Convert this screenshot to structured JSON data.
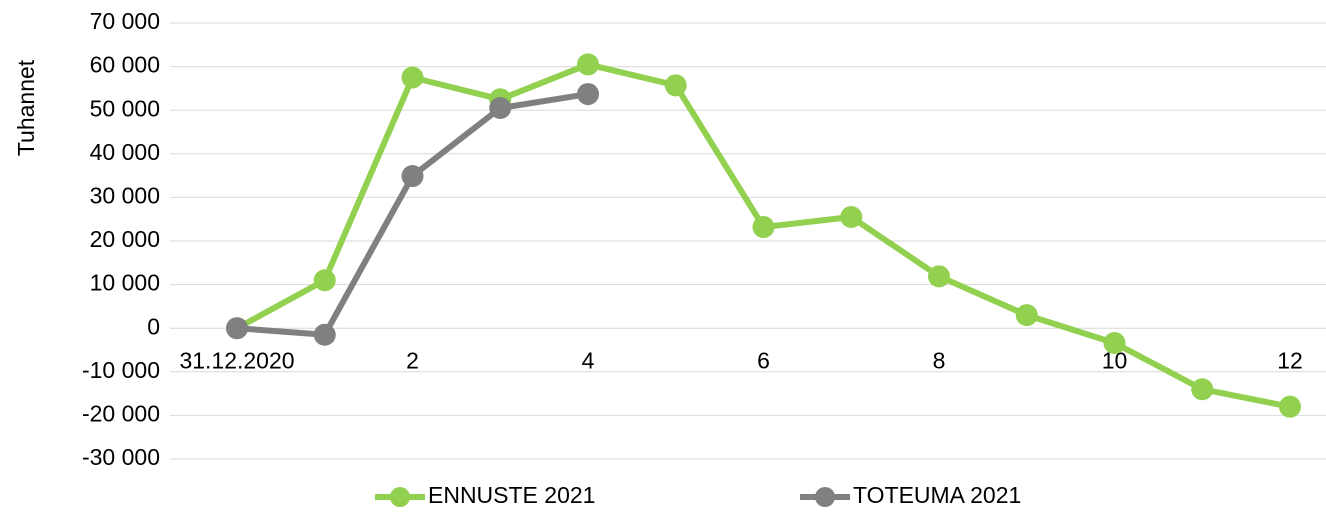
{
  "chart_data": {
    "type": "line",
    "y_axis_label": "Tuhannet",
    "categories": [
      "31.12.2020",
      null,
      "2",
      null,
      "4",
      null,
      "6",
      null,
      "8",
      null,
      "10",
      null,
      "12"
    ],
    "series": [
      {
        "name": "ENNUSTE 2021",
        "color": "#92d050",
        "values": [
          0,
          11000,
          57500,
          52500,
          60500,
          55700,
          23200,
          25500,
          11900,
          3000,
          -3400,
          -14000,
          -18000
        ]
      },
      {
        "name": "TOTEUMA 2021",
        "color": "#808080",
        "values": [
          0,
          -1500,
          34900,
          50500,
          53700,
          null,
          null,
          null,
          null,
          null,
          null,
          null,
          null
        ]
      }
    ],
    "ylim": [
      -30000,
      70000
    ],
    "yticks": [
      {
        "value": -30000,
        "label": "-30 000"
      },
      {
        "value": -20000,
        "label": "-20 000"
      },
      {
        "value": -10000,
        "label": "-10 000"
      },
      0,
      {
        "value": 10000,
        "label": "10 000"
      },
      {
        "value": 20000,
        "label": "20 000"
      },
      {
        "value": 30000,
        "label": "30 000"
      },
      {
        "value": 40000,
        "label": "40 000"
      },
      {
        "value": 50000,
        "label": "50 000"
      },
      {
        "value": 60000,
        "label": "60 000"
      },
      {
        "value": 70000,
        "label": "70 000"
      }
    ],
    "grid": true,
    "legend": "bottom"
  }
}
